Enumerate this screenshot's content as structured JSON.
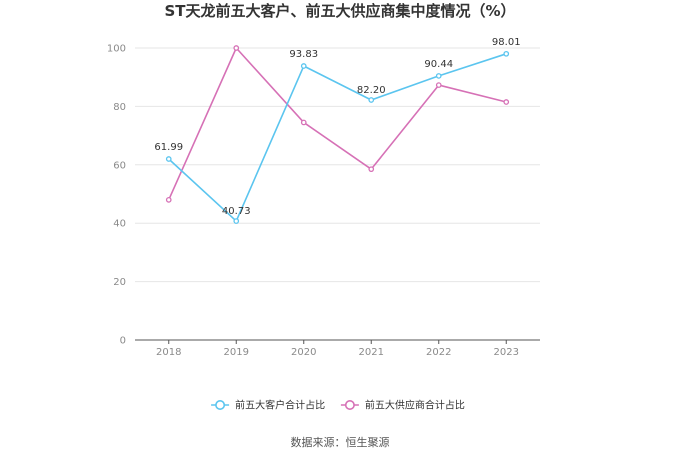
{
  "chart_data": {
    "type": "line",
    "title": "ST天龙前五大客户、前五大供应商集中度情况（%）",
    "xlabel": "",
    "ylabel": "",
    "categories": [
      "2018",
      "2019",
      "2020",
      "2021",
      "2022",
      "2023"
    ],
    "ylim": [
      0,
      100
    ],
    "yticks": [
      "0",
      "20",
      "40",
      "60",
      "80",
      "100"
    ],
    "grid": true,
    "legend_position": "bottom",
    "series": [
      {
        "name": "前五大客户合计占比",
        "color": "#5bc5ef",
        "values": [
          61.99,
          40.73,
          93.83,
          82.2,
          90.44,
          98.01
        ],
        "labels": [
          "61.99",
          "40.73",
          "93.83",
          "82.20",
          "90.44",
          "98.01"
        ]
      },
      {
        "name": "前五大供应商合计占比",
        "color": "#d671b6",
        "values": [
          48.0,
          100.0,
          74.5,
          58.5,
          87.3,
          81.5
        ],
        "labels": []
      }
    ]
  },
  "source_text": "数据来源：恒生聚源"
}
